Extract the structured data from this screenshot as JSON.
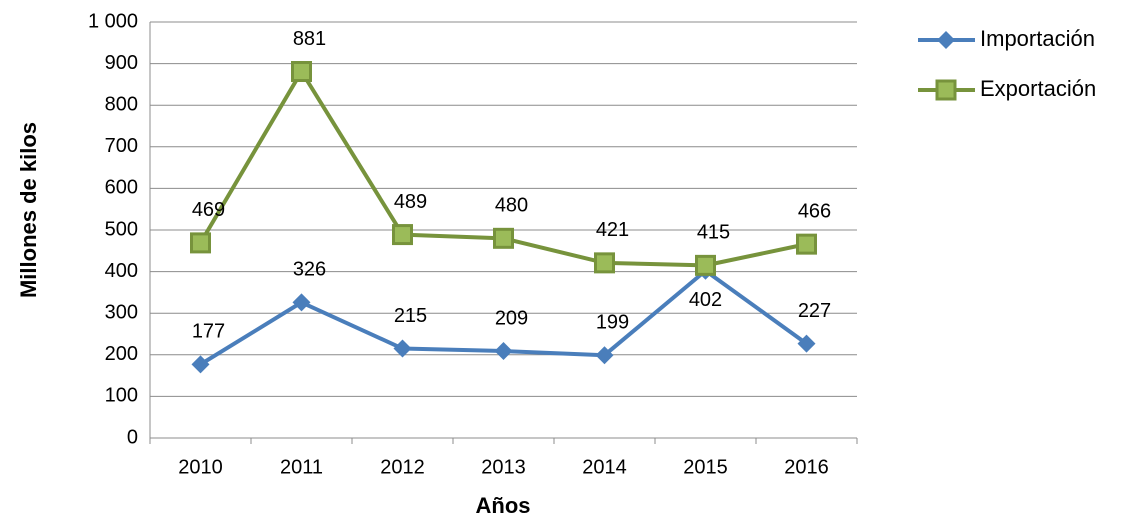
{
  "chart_data": {
    "type": "line",
    "categories": [
      "2010",
      "2011",
      "2012",
      "2013",
      "2014",
      "2015",
      "2016"
    ],
    "series": [
      {
        "name": "Importación",
        "color": "#4a7ebb",
        "marker": "diamond",
        "values": [
          177,
          326,
          215,
          209,
          199,
          402,
          227
        ]
      },
      {
        "name": "Exportación",
        "color": "#77933c",
        "marker": "square",
        "values": [
          469,
          881,
          489,
          480,
          421,
          415,
          466
        ]
      }
    ],
    "ylabel": "Millones de kilos",
    "xlabel": "Años",
    "ylim": [
      0,
      1000
    ],
    "yticks": [
      0,
      100,
      200,
      300,
      400,
      500,
      600,
      700,
      800,
      900,
      {
        "value": 1000,
        "label": "1 000"
      }
    ],
    "grid": true,
    "legend": "right"
  }
}
